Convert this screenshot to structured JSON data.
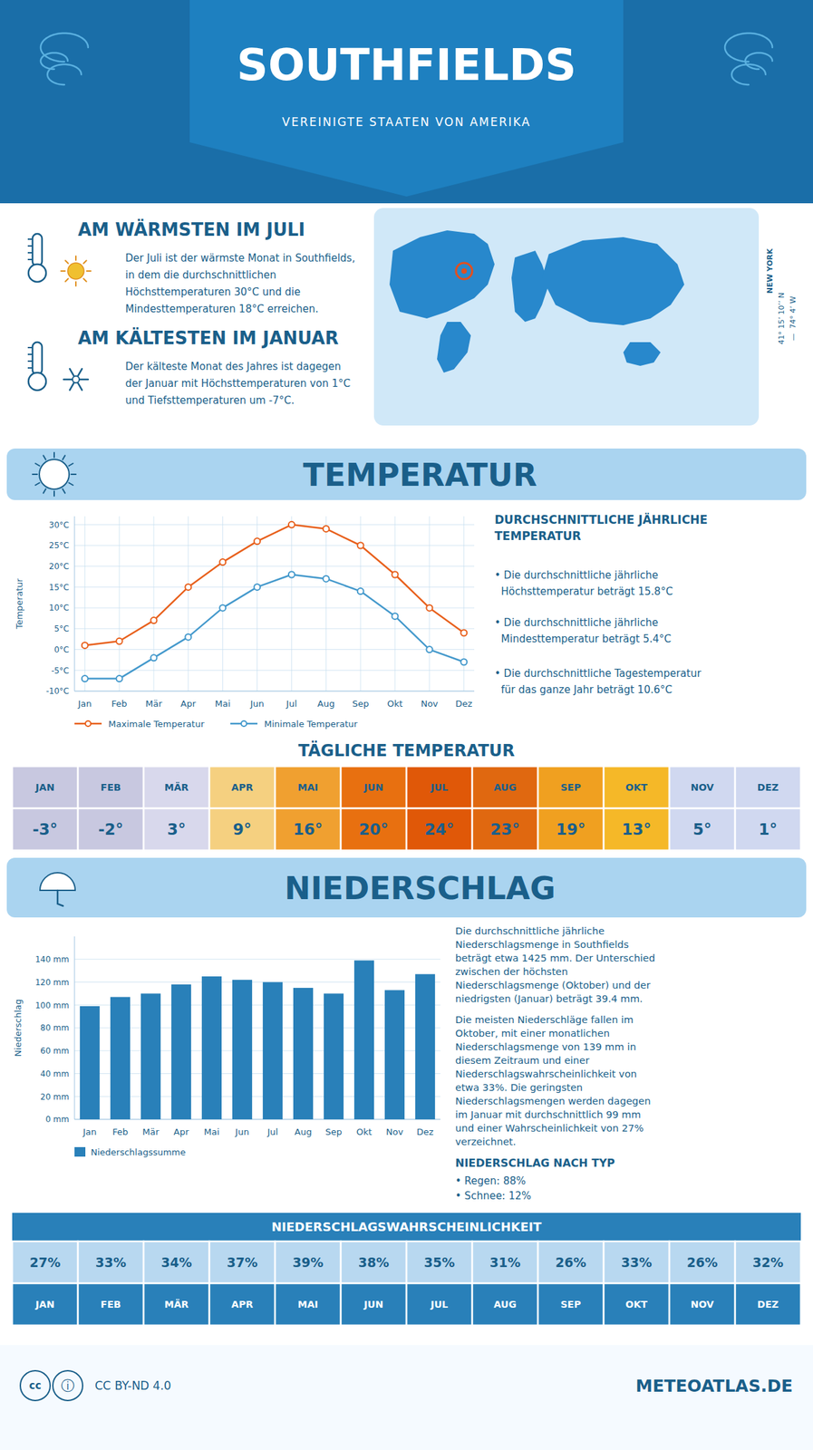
{
  "title": "SOUTHFIELDS",
  "subtitle": "VEREINIGTE STAATEN VON AMERIKA",
  "annotations": [
    "AM WÄRMSTEN IM JULI",
    "Der Juli ist der wärmste Monat in Southfields,\nin dem die durchschnittlichen\nHöchsttemperaturen 30°C und die\nMindesttemperaturen 18°C erreichen.",
    "AM KÄLTESTEN IM JANUAR",
    "Der kälteste Monat des Jahres ist dagegen\nder Januar mit Höchsttemperaturen von 1°C\nund Tiefsttemperaturen um -7°C.",
    "NEW YORK",
    "41° 15’ 10’’ N",
    "—  74° 4’ W",
    "cc",
    "ⓘ",
    "CC BY-ND 4.0",
    "METEOATLAS.DE"
  ],
  "chart_data": [
    {
      "type": "line",
      "title": "TEMPERATUR",
      "ylabel": "Temperatur",
      "categories": [
        "Jan",
        "Feb",
        "Mär",
        "Apr",
        "Mai",
        "Jun",
        "Jul",
        "Aug",
        "Sep",
        "Okt",
        "Nov",
        "Dez"
      ],
      "series": [
        {
          "name": "Maximale Temperatur",
          "color": "#e8601c",
          "marker": "circle",
          "values": [
            1,
            2,
            7,
            15,
            21,
            26,
            30,
            29,
            25,
            18,
            10,
            4
          ]
        },
        {
          "name": "Minimale Temperatur",
          "color": "#4499cc",
          "marker": "circle",
          "values": [
            -7,
            -7,
            -2,
            3,
            10,
            15,
            18,
            17,
            14,
            8,
            0,
            -3
          ]
        }
      ],
      "ylim": [
        -10,
        32
      ],
      "yticks": [
        {
          "value": -10,
          "label": "-10°C"
        },
        {
          "value": -5,
          "label": "-5°C"
        },
        {
          "value": 0,
          "label": "0°C"
        },
        {
          "value": 5,
          "label": "5°C"
        },
        {
          "value": 10,
          "label": "10°C"
        },
        {
          "value": 15,
          "label": "15°C"
        },
        {
          "value": 20,
          "label": "20°C"
        },
        {
          "value": 25,
          "label": "25°C"
        },
        {
          "value": 30,
          "label": "30°C"
        }
      ],
      "grid": true,
      "legend": "bottom",
      "annotations": [
        "DURCHSCHNITTLICHE JÄHRLICHE\nTEMPERATUR",
        "• Die durchschnittliche jährliche\n  Höchsttemperatur beträgt 15.8°C",
        "• Die durchschnittliche jährliche\n  Mindesttemperatur beträgt 5.4°C",
        "• Die durchschnittliche Tagestemperatur\n  für das ganze Jahr beträgt 10.6°C"
      ]
    },
    {
      "type": "bar",
      "title": "NIEDERSCHLAG",
      "ylabel": "Niederschlag",
      "categories": [
        "Jan",
        "Feb",
        "Mär",
        "Apr",
        "Mai",
        "Jun",
        "Jul",
        "Aug",
        "Sep",
        "Okt",
        "Nov",
        "Dez"
      ],
      "series": [
        {
          "name": "Niederschlagssumme",
          "color": "#2980b9",
          "values": [
            99,
            107,
            110,
            118,
            125,
            122,
            120,
            115,
            110,
            139,
            113,
            127
          ]
        }
      ],
      "ylim": [
        0,
        160
      ],
      "yticks": [
        {
          "value": 0,
          "label": "0 mm"
        },
        {
          "value": 20,
          "label": "20 mm"
        },
        {
          "value": 40,
          "label": "40 mm"
        },
        {
          "value": 60,
          "label": "60 mm"
        },
        {
          "value": 80,
          "label": "80 mm"
        },
        {
          "value": 100,
          "label": "100 mm"
        },
        {
          "value": 120,
          "label": "120 mm"
        },
        {
          "value": 140,
          "label": "140 mm"
        }
      ],
      "grid": "y",
      "legend": "bottom",
      "annotations": [
        "Die durchschnittliche jährliche\nNiederschlagsmenge in Southfields\nbeträgt etwa 1425 mm. Der Unterschied\nzwischen der höchsten\nNiederschlagsmenge (Oktober) und der\nniedrigsten (Januar) beträgt 39.4 mm.",
        "Die meisten Niederschläge fallen im\nOktober, mit einer monatlichen\nNiederschlagsmenge von 139 mm in\ndiesem Zeitraum und einer\nNiederschlagswahrscheinlichkeit von\netwa 33%. Die geringsten\nNiederschlagsmengen werden dagegen\nim Januar mit durchschnittlich 99 mm\nund einer Wahrscheinlichkeit von 27%\nverzeichnet.",
        "NIEDERSCHLAG NACH TYP",
        "• Regen: 88%",
        "• Schnee: 12%"
      ]
    },
    {
      "type": "table",
      "title": "TÄGLICHE TEMPERATUR",
      "categories": [
        "JAN",
        "FEB",
        "MÄR",
        "APR",
        "MAI",
        "JUN",
        "JUL",
        "AUG",
        "SEP",
        "OKT",
        "NOV",
        "DEZ"
      ],
      "values": [
        -3,
        -2,
        3,
        9,
        16,
        20,
        24,
        23,
        19,
        13,
        5,
        1
      ],
      "value_labels": [
        "-3°",
        "-2°",
        "3°",
        "9°",
        "16°",
        "20°",
        "24°",
        "23°",
        "19°",
        "13°",
        "5°",
        "1°"
      ],
      "colors": [
        "#c8c8e0",
        "#c8c8e0",
        "#d8d8ec",
        "#f5d080",
        "#f0a030",
        "#e87010",
        "#e05808",
        "#e06810",
        "#f0a020",
        "#f5b828",
        "#d0d8f0",
        "#d0d8f0"
      ]
    },
    {
      "type": "table",
      "title": "NIEDERSCHLAGSWAHRSCHEINLICHKEIT",
      "categories": [
        "JAN",
        "FEB",
        "MÄR",
        "APR",
        "MAI",
        "JUN",
        "JUL",
        "AUG",
        "SEP",
        "OKT",
        "NOV",
        "DEZ"
      ],
      "values": [
        27,
        33,
        34,
        37,
        39,
        38,
        35,
        31,
        26,
        33,
        26,
        32
      ],
      "value_labels": [
        "27%",
        "33%",
        "34%",
        "37%",
        "39%",
        "38%",
        "35%",
        "31%",
        "26%",
        "33%",
        "26%",
        "32%"
      ],
      "color": "#2980b9"
    }
  ]
}
